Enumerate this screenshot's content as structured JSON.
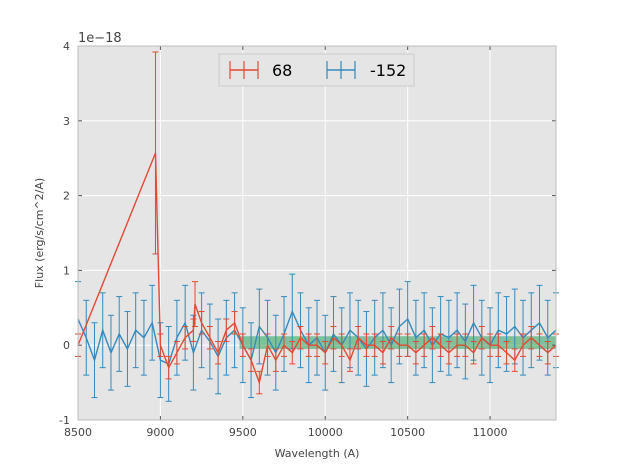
{
  "chart_data": {
    "type": "line",
    "title": "",
    "xlabel": "Wavelength (A)",
    "ylabel": "Flux (erg/s/cm^2/A)",
    "xlim": [
      8500,
      11400
    ],
    "ylim": [
      -1,
      4
    ],
    "y_scale_label": "1e−18",
    "x_ticks": [
      8500,
      9000,
      9500,
      10000,
      10500,
      11000
    ],
    "y_ticks": [
      -1,
      0,
      1,
      2,
      3,
      4
    ],
    "grid": true,
    "legend_position": "top-center",
    "colors": {
      "series_68": "#e24a33",
      "series_152": "#348abd",
      "band": "#2ca25f",
      "background": "#e5e5e5"
    },
    "series": [
      {
        "name": "68",
        "x": [
          8500,
          9000,
          9050,
          9100,
          9150,
          9200,
          9250,
          9300,
          9350,
          9400,
          9450,
          9500,
          9550,
          9600,
          9650,
          9700,
          9750,
          9800,
          9850,
          9900,
          9950,
          10000,
          10050,
          10100,
          10150,
          10200,
          10250,
          10300,
          10350,
          10400,
          10450,
          10500,
          10550,
          10600,
          10650,
          10700,
          10750,
          10800,
          10850,
          10900,
          10950,
          11000,
          11050,
          11100,
          11150,
          11200,
          11250,
          11300,
          11350,
          11400
        ],
        "y": [
          0.0,
          0.0,
          -0.3,
          -0.1,
          0.1,
          0.2,
          0.3,
          0.1,
          -0.1,
          0.2,
          0.3,
          0.0,
          -0.2,
          -0.5,
          0.0,
          -0.2,
          0.0,
          -0.1,
          0.1,
          0.0,
          0.0,
          -0.1,
          0.1,
          0.0,
          -0.2,
          0.1,
          0.0,
          0.0,
          -0.1,
          0.1,
          0.0,
          0.0,
          -0.1,
          0.0,
          0.1,
          0.0,
          -0.1,
          0.0,
          0.0,
          -0.1,
          0.1,
          0.0,
          0.0,
          -0.1,
          -0.2,
          0.0,
          0.1,
          0.0,
          -0.1,
          0.0
        ],
        "peaks": [
          {
            "x": 8970,
            "y": 2.57,
            "err": 1.35
          },
          {
            "x": 9210,
            "y": 0.55,
            "err": 0.3
          }
        ],
        "error": 0.15
      },
      {
        "name": "-152",
        "x": [
          8500,
          8550,
          8600,
          8650,
          8700,
          8750,
          8800,
          8850,
          8900,
          8950,
          9000,
          9050,
          9100,
          9150,
          9200,
          9250,
          9300,
          9350,
          9400,
          9450,
          9500,
          9550,
          9600,
          9650,
          9700,
          9750,
          9800,
          9850,
          9900,
          9950,
          10000,
          10050,
          10100,
          10150,
          10200,
          10250,
          10300,
          10350,
          10400,
          10450,
          10500,
          10550,
          10600,
          10650,
          10700,
          10750,
          10800,
          10850,
          10900,
          10950,
          11000,
          11050,
          11100,
          11150,
          11200,
          11250,
          11300,
          11350,
          11400
        ],
        "y": [
          0.35,
          0.1,
          -0.2,
          0.2,
          -0.1,
          0.15,
          -0.05,
          0.2,
          0.1,
          0.3,
          -0.2,
          -0.25,
          0.1,
          0.3,
          -0.1,
          0.2,
          0.05,
          -0.15,
          0.1,
          0.2,
          0.0,
          -0.2,
          0.25,
          0.1,
          -0.1,
          0.15,
          0.45,
          0.2,
          0.0,
          0.1,
          -0.1,
          0.15,
          0.0,
          0.2,
          0.1,
          -0.05,
          0.1,
          0.2,
          0.0,
          0.25,
          0.35,
          0.1,
          0.2,
          0.0,
          0.15,
          0.1,
          0.2,
          0.05,
          0.3,
          0.1,
          0.0,
          0.2,
          0.15,
          0.25,
          0.1,
          0.2,
          0.3,
          0.1,
          0.2
        ],
        "error": 0.5
      }
    ],
    "band": {
      "x_start": 9480,
      "x_end": 11400,
      "y_low": -0.05,
      "y_high": 0.12
    }
  }
}
